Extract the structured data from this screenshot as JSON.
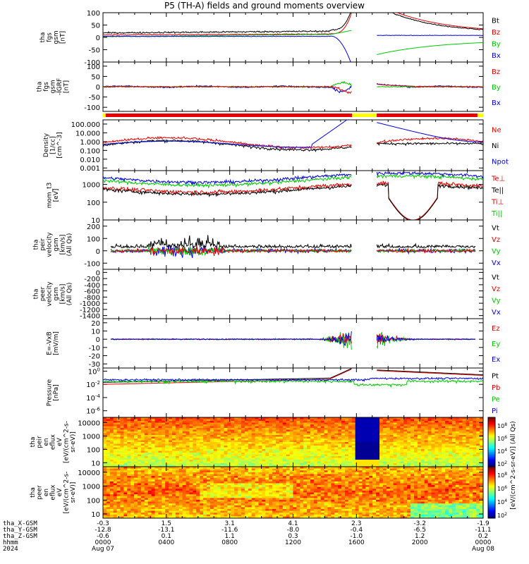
{
  "title": "P5 (TH-A) fields and ground moments overview",
  "colors": {
    "black": "#000000",
    "red": "#e00000",
    "green": "#00c800",
    "blue": "#0000e0",
    "bar_red": "#e80000",
    "bar_yellow": "#ffff00"
  },
  "chart_data": [
    {
      "type": "line",
      "ylabel": [
        "tha",
        "fgs",
        "gsm",
        "[nT]"
      ],
      "ylim": [
        -100,
        100
      ],
      "ticks": [
        "100",
        "50",
        "0",
        "-50",
        "-100"
      ],
      "tick_values": [
        100,
        50,
        0,
        -50,
        -100
      ],
      "legend": [
        {
          "text": "Bt",
          "color": "#000000"
        },
        {
          "text": "Bz",
          "color": "#e00000"
        },
        {
          "text": "By",
          "color": "#00c800"
        },
        {
          "text": "Bx",
          "color": "#0000e0"
        }
      ]
    },
    {
      "type": "line",
      "ylabel": [
        "tha",
        "fgs",
        "gsm",
        "-IGRF",
        "[nT]"
      ],
      "ylim": [
        -120,
        120
      ],
      "ticks": [
        "100",
        "50",
        "0",
        "-50",
        "-100"
      ],
      "tick_values": [
        100,
        50,
        0,
        -50,
        -100
      ],
      "legend": [
        {
          "text": "Bz",
          "color": "#e00000"
        },
        {
          "text": "By",
          "color": "#00c800"
        },
        {
          "text": "Bx",
          "color": "#0000e0"
        }
      ]
    },
    {
      "type": "line",
      "ylabel": [
        "Density",
        "[1/cc]",
        "[cm^-3]"
      ],
      "scale": "log",
      "ylim": [
        0.0005,
        300
      ],
      "ticks": [
        "100.000",
        "10.000",
        "1.000",
        "0.100",
        "0.010",
        "0.001"
      ],
      "tick_values": [
        100,
        10,
        1,
        0.1,
        0.01,
        0.001
      ],
      "legend": [
        {
          "text": "Ne",
          "color": "#e00000"
        },
        {
          "text": "Ni",
          "color": "#000000"
        },
        {
          "text": "Npot",
          "color": "#0000e0"
        }
      ]
    },
    {
      "type": "line",
      "ylabel": [
        "mom_t3",
        "[eV]"
      ],
      "scale": "log",
      "ylim": [
        10,
        6000
      ],
      "ticks": [
        "1000",
        "100",
        "10"
      ],
      "tick_values": [
        1000,
        100,
        10
      ],
      "legend": [
        {
          "text": "Te⊥",
          "color": "#e00000"
        },
        {
          "text": "Te||",
          "color": "#000000"
        },
        {
          "text": "Ti⊥",
          "color": "#e00000"
        },
        {
          "text": "Ti||",
          "color": "#00c800"
        }
      ]
    },
    {
      "type": "line",
      "ylabel": [
        "tha",
        "peir",
        "velocity",
        "gsm",
        "[km/s]",
        "(All Qs)"
      ],
      "ylim": [
        -150,
        250
      ],
      "ticks": [
        "200",
        "100",
        "0",
        "-100"
      ],
      "tick_values": [
        200,
        100,
        0,
        -100
      ],
      "legend": [
        {
          "text": "Vt",
          "color": "#000000"
        },
        {
          "text": "Vz",
          "color": "#e00000"
        },
        {
          "text": "Vy",
          "color": "#00c800"
        },
        {
          "text": "Vx",
          "color": "#0000e0"
        }
      ]
    },
    {
      "type": "line",
      "ylabel": [
        "tha",
        "peer",
        "velocity",
        "gsm",
        "[km/s]",
        "(All Qs)"
      ],
      "ylim": [
        -1500,
        100
      ],
      "ticks": [
        "0",
        "-200",
        "-400",
        "-600",
        "-800",
        "-1000",
        "-1200",
        "-1400"
      ],
      "tick_values": [
        0,
        -200,
        -400,
        -600,
        -800,
        -1000,
        -1200,
        -1400
      ],
      "legend": [
        {
          "text": "Vt",
          "color": "#000000"
        },
        {
          "text": "Vz",
          "color": "#e00000"
        },
        {
          "text": "Vy",
          "color": "#00c800"
        },
        {
          "text": "Vx",
          "color": "#0000e0"
        }
      ]
    },
    {
      "type": "line",
      "ylabel": [
        "E=-VxB",
        "[mV/m]"
      ],
      "ylim": [
        -35,
        25
      ],
      "ticks": [
        "20",
        "10",
        "0",
        "-10",
        "-20",
        "-30"
      ],
      "tick_values": [
        20,
        10,
        0,
        -10,
        -20,
        -30
      ],
      "legend": [
        {
          "text": "Ez",
          "color": "#e00000"
        },
        {
          "text": "Ey",
          "color": "#00c800"
        },
        {
          "text": "Ex",
          "color": "#0000e0"
        }
      ]
    },
    {
      "type": "line",
      "ylabel": [
        "Pressure",
        "[nPa]"
      ],
      "scale": "log",
      "ylim": [
        1e-07,
        3
      ],
      "ticks": [
        "10^0",
        "10^-2",
        "10^-4",
        "10^-6"
      ],
      "tick_values": [
        1,
        0.01,
        0.0001,
        1e-06
      ],
      "legend": [
        {
          "text": "Pt",
          "color": "#000000"
        },
        {
          "text": "Pb",
          "color": "#e00000"
        },
        {
          "text": "Pe",
          "color": "#00c800"
        },
        {
          "text": "Pi",
          "color": "#0000e0"
        }
      ]
    },
    {
      "type": "heatmap",
      "ylabel": [
        "tha",
        "peir",
        "en",
        "eflux",
        "eV",
        "[eV/(cm^2-s-",
        "sr-eV)]"
      ],
      "scale": "log",
      "ylim": [
        5,
        25000
      ],
      "ticks": [
        "10000",
        "1000",
        "100",
        "10"
      ],
      "tick_values": [
        10000,
        1000,
        100,
        10
      ],
      "colorbar_ticks": [
        "10^8",
        "10^6",
        "10^4",
        "10^2"
      ],
      "colorbar_label": "[eV/(cm^2-s-sr-eV)] (All Qs)"
    },
    {
      "type": "heatmap",
      "ylabel": [
        "tha",
        "peer",
        "en",
        "eflux",
        "eV",
        "[eV/(cm^2-s-",
        "sr-eV)]"
      ],
      "scale": "log",
      "ylim": [
        5,
        25000
      ],
      "ticks": [
        "10000",
        "1000",
        "100",
        "10"
      ],
      "tick_values": [
        10000,
        1000,
        100,
        10
      ],
      "colorbar_ticks": [
        "10^8",
        "10^6",
        "10^4",
        "10^2"
      ],
      "colorbar_label": "[eV/(cm^2-s-sr-eV)] (All Qs)"
    }
  ],
  "xaxis": {
    "row_labels": [
      "tha_X-GSM",
      "tha_Y-GSM",
      "tha_Z-GSM",
      "hhmm",
      "2024"
    ],
    "columns": [
      {
        "x": "-0.3",
        "y": "-12.8",
        "z": "-0.6",
        "time": "0000",
        "date": "Aug 07"
      },
      {
        "x": "1.5",
        "y": "-13.1",
        "z": "0.1",
        "time": "0400",
        "date": ""
      },
      {
        "x": "3.1",
        "y": "-11.6",
        "z": "1.1",
        "time": "0800",
        "date": ""
      },
      {
        "x": "4.1",
        "y": "-8.0",
        "z": "0.3",
        "time": "1200",
        "date": ""
      },
      {
        "x": "2.3",
        "y": "-0.4",
        "z": "-1.0",
        "time": "1600",
        "date": ""
      },
      {
        "x": "-3.2",
        "y": "-6.5",
        "z": "1.2",
        "time": "2000",
        "date": ""
      },
      {
        "x": "-1.9",
        "y": "-11.1",
        "z": "0.2",
        "time": "0000",
        "date": "Aug 08"
      }
    ]
  }
}
